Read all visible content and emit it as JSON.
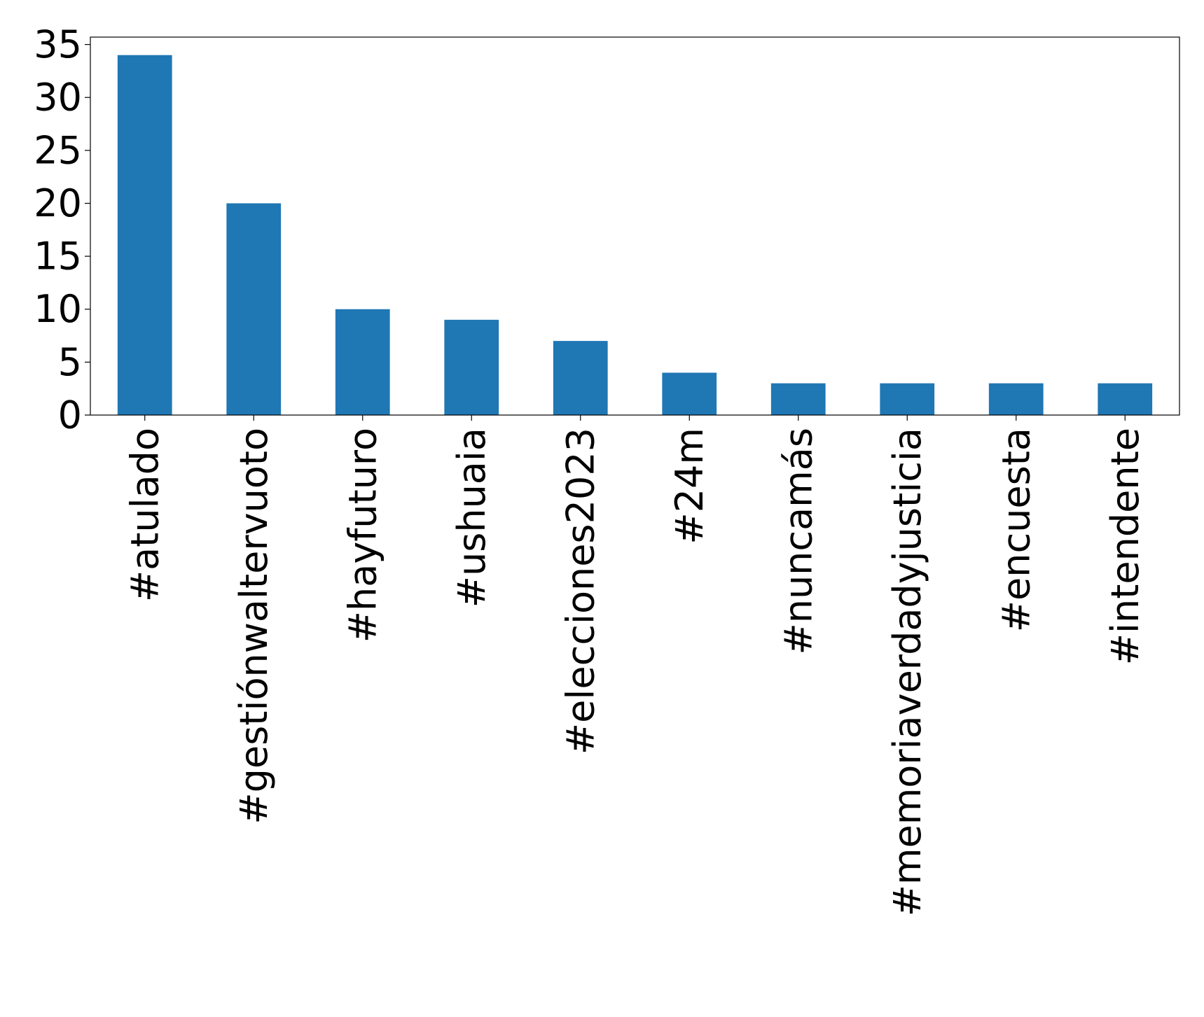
{
  "chart_data": {
    "type": "bar",
    "title": "",
    "xlabel": "",
    "ylabel": "",
    "categories": [
      "#atulado",
      "#gestiónwaltervuoto",
      "#hayfuturo",
      "#ushuaia",
      "#elecciones2023",
      "#24m",
      "#nuncamás",
      "#memoriaverdadyjusticia",
      "#encuesta",
      "#intendente"
    ],
    "values": [
      34,
      20,
      10,
      9,
      7,
      4,
      3,
      3,
      3,
      3
    ],
    "ylim": [
      0,
      35.7
    ],
    "yticks": [
      0,
      5,
      10,
      15,
      20,
      25,
      30,
      35
    ],
    "grid": false,
    "legend": "none",
    "bar_color": "#1f77b4"
  }
}
